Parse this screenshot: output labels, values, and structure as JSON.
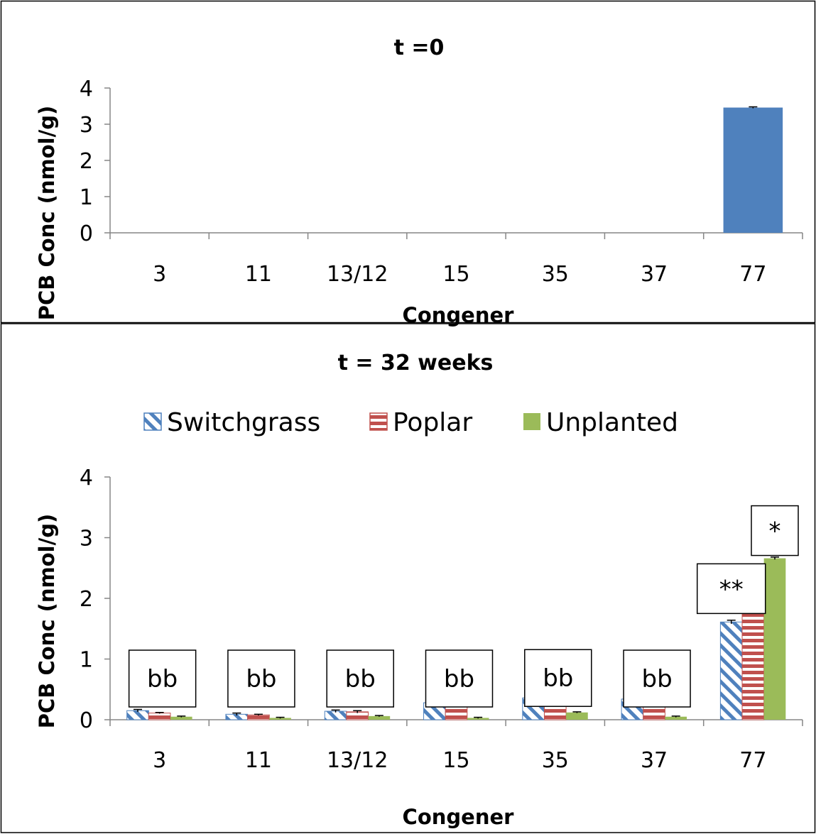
{
  "chart_data": [
    {
      "type": "bar",
      "title": "t =0",
      "xlabel": "Congener",
      "ylabel": "PCB Conc (nmol/g)",
      "ylim": [
        0,
        4
      ],
      "yticks": [
        "0",
        "1",
        "2",
        "3",
        "4"
      ],
      "categories": [
        "3",
        "11",
        "13/12",
        "15",
        "35",
        "37",
        "77"
      ],
      "series": [
        {
          "values": [
            0,
            0,
            0,
            0,
            0,
            0,
            3.46
          ],
          "errors": [
            0,
            0,
            0,
            0,
            0,
            0,
            0.02
          ]
        }
      ],
      "colors": [
        "#4f81bd"
      ],
      "grid": false,
      "legend": "none"
    },
    {
      "type": "bar",
      "title": "t = 32 weeks",
      "xlabel": "Congener",
      "ylabel": "PCB Conc (nmol/g)",
      "ylim": [
        0,
        4
      ],
      "yticks": [
        "0",
        "1",
        "2",
        "3",
        "4"
      ],
      "categories": [
        "3",
        "11",
        "13/12",
        "15",
        "35",
        "37",
        "77"
      ],
      "series": [
        {
          "name": "Switchgrass",
          "values": [
            0.15,
            0.09,
            0.14,
            0.28,
            0.36,
            0.34,
            1.61
          ],
          "errors": [
            0.02,
            0.02,
            0.02,
            0.02,
            0.02,
            0.02,
            0.03
          ]
        },
        {
          "name": "Poplar",
          "values": [
            0.11,
            0.08,
            0.13,
            0.24,
            0.36,
            0.34,
            1.86
          ],
          "errors": [
            0.01,
            0.01,
            0.02,
            0.02,
            0.02,
            0.02,
            0.03
          ]
        },
        {
          "name": "Unplanted",
          "values": [
            0.05,
            0.03,
            0.06,
            0.03,
            0.12,
            0.05,
            2.66
          ],
          "errors": [
            0.01,
            0.01,
            0.01,
            0.01,
            0.01,
            0.01,
            0.02
          ]
        }
      ],
      "colors": [
        "#4f81bd",
        "#c0504d",
        "#9bbb59"
      ],
      "patterns": [
        "diagonal",
        "horizontal",
        "solid"
      ],
      "grid": false,
      "legend": "top",
      "annotations": [
        {
          "text": "bb",
          "category": "3"
        },
        {
          "text": "bb",
          "category": "11"
        },
        {
          "text": "bb",
          "category": "13/12"
        },
        {
          "text": "bb",
          "category": "15"
        },
        {
          "text": "bb",
          "category": "35"
        },
        {
          "text": "bb",
          "category": "37"
        },
        {
          "text": "**",
          "category": "77",
          "series": "Switchgrass"
        },
        {
          "text": "*",
          "category": "77",
          "series": "Unplanted"
        }
      ]
    }
  ]
}
